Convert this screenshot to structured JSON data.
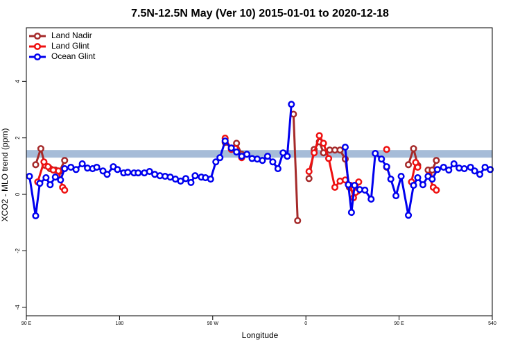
{
  "chart_data": {
    "type": "line",
    "title": "7.5N-12.5N May (Ver 10)   2015-01-01 to 2020-12-18",
    "x_label": "Longitude",
    "y_label": "XCO2 - MLO trend (ppm)",
    "xlim": [
      90,
      540
    ],
    "ylim": [
      -4.3,
      5.9
    ],
    "xticks": [
      {
        "value": 90,
        "label": "90 E"
      },
      180,
      {
        "value": 270,
        "label": "90 W"
      },
      {
        "value": 360,
        "label": "0"
      },
      {
        "value": 450,
        "label": "90 E"
      },
      540
    ],
    "yticks": [
      -4,
      -2,
      0,
      2,
      4
    ],
    "grid": false,
    "legend_position": "top-left",
    "reference_band": {
      "ymin": 1.3,
      "ymax": 1.57,
      "color": "#a6bcd8"
    },
    "series": [
      {
        "name": "Land Nadir",
        "color": "#a52a2a",
        "x": [
          99,
          104,
          108,
          113,
          118,
          122,
          127,
          null,
          282,
          288,
          293,
          298,
          null,
          348,
          352,
          null,
          363,
          368,
          373,
          377,
          383,
          388,
          393,
          398,
          402,
          406,
          410,
          null,
          438,
          null,
          459,
          464,
          468,
          null,
          478,
          482,
          486
        ],
        "values": [
          1.05,
          1.62,
          1.03,
          0.91,
          0.86,
          0.81,
          1.2,
          null,
          1.84,
          1.64,
          1.81,
          1.42,
          null,
          2.84,
          -0.93,
          null,
          0.56,
          1.59,
          1.86,
          1.47,
          1.57,
          1.57,
          1.57,
          1.25,
          0.25,
          0.17,
          0.12,
          null,
          0.96,
          null,
          1.05,
          1.62,
          1.03,
          null,
          0.86,
          0.86,
          1.2
        ]
      },
      {
        "name": "Land Glint",
        "color": "#ee1111",
        "x": [
          101,
          107,
          111,
          116,
          121,
          125,
          127,
          null,
          282,
          288,
          292,
          298,
          null,
          363,
          368,
          373,
          377,
          382,
          388,
          393,
          398,
          403,
          406,
          408,
          411,
          null,
          438,
          null,
          462,
          466,
          468,
          null,
          479,
          483,
          486
        ],
        "values": [
          0.44,
          1.15,
          0.98,
          0.86,
          0.83,
          0.25,
          0.15,
          null,
          1.99,
          1.59,
          1.62,
          1.3,
          null,
          0.81,
          1.47,
          2.08,
          1.81,
          1.27,
          0.25,
          0.47,
          0.51,
          0.32,
          -0.12,
          0.07,
          0.44,
          null,
          1.59,
          null,
          0.44,
          1.13,
          0.96,
          null,
          0.66,
          0.25,
          0.15
        ]
      },
      {
        "name": "Ocean Glint",
        "color": "#0000ee",
        "x": [
          93,
          99,
          103,
          109,
          113,
          118,
          123,
          127,
          133,
          138,
          144,
          149,
          154,
          158,
          164,
          168,
          174,
          178,
          184,
          188,
          194,
          198,
          204,
          209,
          214,
          219,
          224,
          229,
          234,
          239,
          244,
          249,
          253,
          259,
          263,
          268,
          273,
          277,
          282,
          288,
          293,
          298,
          303,
          308,
          313,
          318,
          323,
          328,
          333,
          338,
          342,
          346,
          null,
          398,
          401,
          404,
          407,
          412,
          417,
          423,
          427,
          433,
          438,
          442,
          447,
          452,
          459,
          464,
          468,
          473,
          478,
          482,
          487,
          493,
          498,
          503,
          508,
          513,
          519,
          523,
          528,
          533,
          538
        ],
        "values": [
          0.64,
          -0.76,
          0.39,
          0.59,
          0.34,
          0.61,
          0.51,
          0.91,
          0.96,
          0.88,
          1.08,
          0.93,
          0.91,
          0.96,
          0.83,
          0.71,
          0.98,
          0.88,
          0.76,
          0.78,
          0.76,
          0.76,
          0.76,
          0.81,
          0.71,
          0.66,
          0.64,
          0.61,
          0.54,
          0.47,
          0.56,
          0.42,
          0.66,
          0.61,
          0.59,
          0.54,
          1.15,
          1.3,
          1.89,
          1.64,
          1.5,
          1.35,
          1.42,
          1.27,
          1.25,
          1.2,
          1.35,
          1.15,
          0.91,
          1.47,
          1.35,
          3.19,
          null,
          1.67,
          0.34,
          -0.64,
          0.32,
          0.17,
          0.15,
          -0.17,
          1.45,
          1.25,
          0.98,
          0.54,
          -0.05,
          0.64,
          -0.74,
          0.32,
          0.59,
          0.34,
          0.64,
          0.54,
          0.88,
          0.96,
          0.86,
          1.08,
          0.93,
          0.91,
          0.96,
          0.83,
          0.71,
          0.96,
          0.88
        ]
      }
    ]
  }
}
